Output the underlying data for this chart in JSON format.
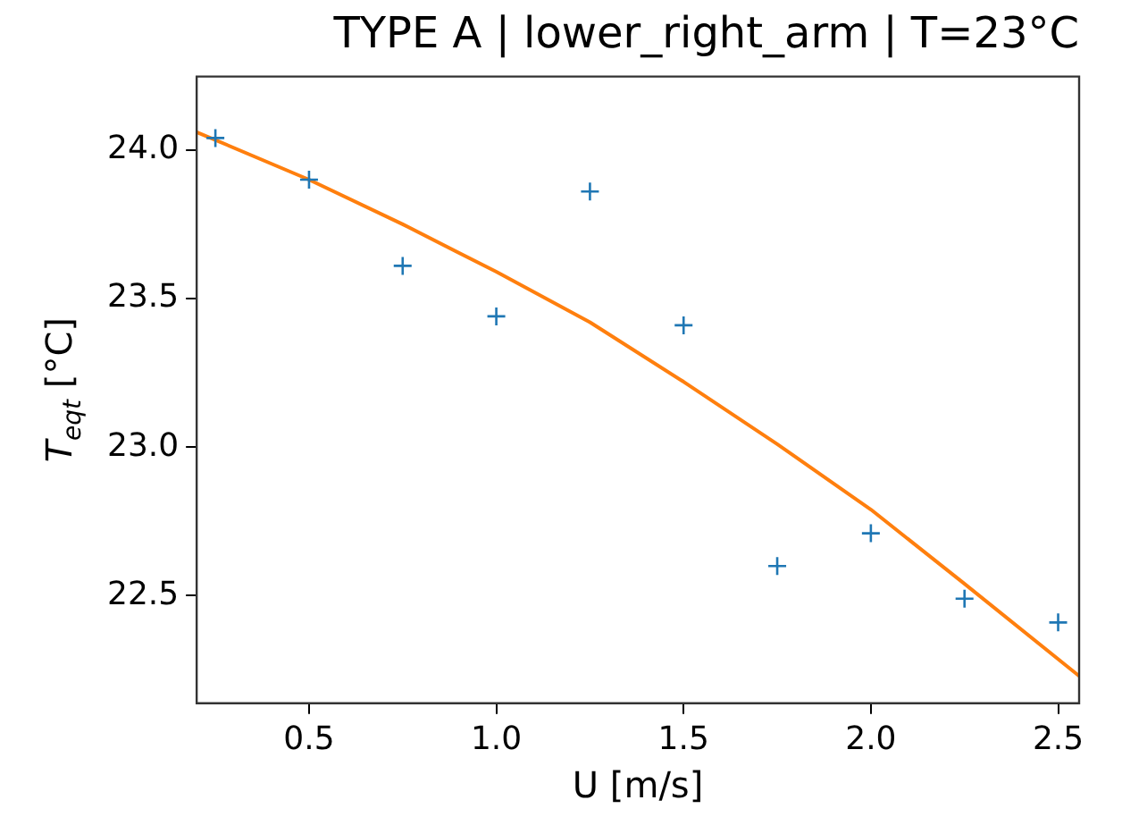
{
  "chart_data": {
    "type": "scatter",
    "title": "TYPE A | lower_right_arm | T=23°C",
    "xlabel": "U [m/s]",
    "ylabel": "T$_{eqt}$ [°C]",
    "x": [
      0.25,
      0.5,
      0.75,
      1.0,
      1.25,
      1.5,
      1.75,
      2.0,
      2.25,
      2.5
    ],
    "series": [
      {
        "color": "#1f77b4",
        "marker": "cross",
        "values": [
          24.04,
          23.9,
          23.61,
          23.44,
          23.86,
          23.41,
          22.6,
          22.71,
          22.49,
          22.41
        ]
      },
      {
        "type": "line",
        "color": "#ff7f0e",
        "marker": "none",
        "line_style": "solid",
        "x": [
          0.2,
          0.5,
          0.75,
          1.0,
          1.25,
          1.5,
          1.75,
          2.0,
          2.25,
          2.556
        ],
        "values": [
          24.06,
          23.9,
          23.75,
          23.59,
          23.42,
          23.22,
          23.01,
          22.79,
          22.54,
          22.23
        ]
      }
    ],
    "xlim": [
      0.2,
      2.556
    ],
    "ylim": [
      22.138,
      24.247
    ],
    "xticks": [
      0.5,
      {
        "value": 1,
        "label": "1.0"
      },
      1.5,
      {
        "value": 2,
        "label": "2.0"
      },
      2.5
    ],
    "yticks": [
      22.5,
      {
        "value": 23,
        "label": "23.0"
      },
      23.5,
      {
        "value": 24,
        "label": "24.0"
      }
    ],
    "grid": false,
    "legend": false
  }
}
